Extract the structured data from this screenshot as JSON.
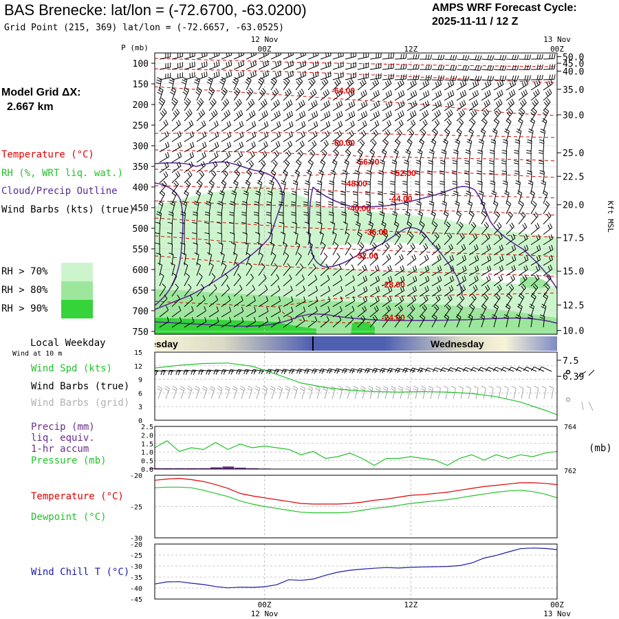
{
  "header": {
    "station": "BAS Brenecke:  lat/lon = (-72.6700, -63.0200)",
    "grid_point": "Grid Point (215, 369) lat/lon = (-72.6657, -63.0525)",
    "cycle_label": "AMPS WRF Forecast Cycle:",
    "cycle_value": "2025-11-11 / 12  Z",
    "model_grid_label": "Model Grid ΔX:",
    "model_grid_value": "2.667 km"
  },
  "colors": {
    "temperature": "#e00000",
    "rh": "#22c22a",
    "cloud": "#5a2a96",
    "wind": "#000000",
    "wind_grid": "#a8a8a8",
    "precip": "#6b2c8c",
    "pressure": "#22c22a",
    "dewpoint": "#22c22a",
    "windchill": "#1a1aa8",
    "rh70": "#cdf5cd",
    "rh80": "#9ce79c",
    "rh90": "#34d43a"
  },
  "legend": {
    "temperature": "Temperature (°C)",
    "rh": "RH (%, WRT liq. wat.)",
    "cloud": "Cloud/Precip Outline",
    "wind": "Wind Barbs (kts) (true)",
    "rh70": "RH > 70%",
    "rh80": "RH > 80%",
    "rh90": "RH > 90%"
  },
  "time_axis": {
    "top_labels": [
      {
        "line1": "12 Nov",
        "line2": "00Z",
        "t": 12
      },
      {
        "line1": "",
        "line2": "12Z",
        "t": 24
      },
      {
        "line1": "13 Nov",
        "line2": "00Z",
        "t": 36
      }
    ],
    "bottom_labels": [
      {
        "line1": "00Z",
        "line2": "12 Nov",
        "t": 12
      },
      {
        "line1": "12Z",
        "line2": "",
        "t": 24
      },
      {
        "line1": "00Z",
        "line2": "13 Nov",
        "t": 36
      }
    ],
    "range_hours": [
      3,
      36
    ]
  },
  "weekday": {
    "label": "Local Weekday",
    "wind_at": "Wind at 10 m",
    "day1": "Tuesday",
    "day2": "Wednesday"
  },
  "chart_data": [
    {
      "type": "contour",
      "name": "cross-section",
      "ylabel": "P (mb)",
      "right_label": "Kft MSL",
      "pressure_levels": [
        100,
        150,
        200,
        250,
        300,
        350,
        400,
        450,
        500,
        550,
        600,
        650,
        700,
        750
      ],
      "ylim": [
        757,
        75
      ],
      "kft_labels": [
        {
          "label": "50.0",
          "p": 84
        },
        {
          "label": "45.0",
          "p": 100
        },
        {
          "label": "40.0",
          "p": 119
        },
        {
          "label": "35.0",
          "p": 163
        },
        {
          "label": "30.0",
          "p": 225
        },
        {
          "label": "25.0",
          "p": 317
        },
        {
          "label": "22.5",
          "p": 374
        },
        {
          "label": "20.0",
          "p": 443
        },
        {
          "label": "17.5",
          "p": 523
        },
        {
          "label": "15.0",
          "p": 604
        },
        {
          "label": "12.5",
          "p": 686
        },
        {
          "label": "10.0",
          "p": 748
        },
        {
          "label": "7.5",
          "p": 820
        },
        {
          "label": "6.39",
          "p": 859
        }
      ],
      "temperature_labels": [
        {
          "label": "-64.00",
          "t": 17.5,
          "p": 165
        },
        {
          "label": "-60.00",
          "t": 17.5,
          "p": 292
        },
        {
          "label": "-56.00",
          "t": 19.5,
          "p": 338
        },
        {
          "label": "-52.00",
          "t": 22.5,
          "p": 365
        },
        {
          "label": "-48.00",
          "t": 18.5,
          "p": 390
        },
        {
          "label": "-44.00",
          "t": 22.2,
          "p": 427
        },
        {
          "label": "-40.00",
          "t": 18.8,
          "p": 450
        },
        {
          "label": "-36.00",
          "t": 20.2,
          "p": 508
        },
        {
          "label": "-32.00",
          "t": 19.4,
          "p": 565
        },
        {
          "label": "-28.00",
          "t": 21.6,
          "p": 635
        },
        {
          "label": "-24.00",
          "t": 21.6,
          "p": 715
        }
      ]
    },
    {
      "type": "line",
      "name": "surface-wind",
      "series_labels": {
        "speed": "Wind Spd (kts)",
        "barbs_true": "Wind Barbs (true)",
        "barbs_grid": "Wind Barbs (grid)"
      },
      "y_ticks": [
        0,
        3,
        6,
        9,
        12,
        15
      ],
      "ylim": [
        0,
        15
      ],
      "x": [
        3,
        5,
        7,
        9,
        11,
        13,
        15,
        17,
        19,
        21,
        23,
        25,
        27,
        29,
        31,
        33,
        35,
        36
      ],
      "speed": [
        11.5,
        12.1,
        12.5,
        12.6,
        11.9,
        10.1,
        8.2,
        7.2,
        6.6,
        6.3,
        6.2,
        6.3,
        6.2,
        5.9,
        5.2,
        4.0,
        2.2,
        1.2
      ]
    },
    {
      "type": "line",
      "name": "precip-pressure",
      "series_labels": {
        "precip": "Precip (mm)",
        "precip2": "liq. equiv.",
        "precip3": "1-hr accum",
        "pressure": "Pressure (mb)"
      },
      "unit_right": "(mb)",
      "left_ticks": [
        "0.0",
        "0.5",
        "1.0",
        "1.5",
        "2.0",
        "2.5"
      ],
      "right_top": "764",
      "right_bottom": "762",
      "pressure_range": [
        762,
        764
      ],
      "x": [
        3,
        4,
        5,
        6,
        7,
        8,
        9,
        10,
        11,
        12,
        13,
        14,
        15,
        16,
        17,
        18,
        19,
        20,
        21,
        22,
        23,
        24,
        25,
        26,
        27,
        28,
        29,
        30,
        31,
        32,
        33,
        34,
        35,
        36
      ],
      "pressure": [
        763.0,
        763.33,
        762.83,
        763.0,
        762.92,
        763.25,
        762.92,
        763.17,
        763.0,
        763.08,
        763.0,
        762.92,
        762.67,
        762.83,
        762.5,
        762.58,
        762.75,
        762.5,
        762.17,
        762.5,
        762.5,
        762.58,
        762.5,
        762.42,
        762.17,
        762.5,
        762.67,
        762.42,
        762.67,
        762.5,
        762.67,
        762.58,
        762.75,
        762.83
      ],
      "precip": [
        0.05,
        0.05,
        0.05,
        0.05,
        0.05,
        0.1,
        0.15,
        0.08,
        0.05,
        0.03,
        0.02,
        0,
        0,
        0,
        0,
        0,
        0,
        0,
        0,
        0,
        0,
        0,
        0,
        0,
        0,
        0,
        0,
        0,
        0,
        0,
        0,
        0,
        0,
        0
      ],
      "ylim": [
        0,
        2.5
      ]
    },
    {
      "type": "line",
      "name": "temperature-dewpoint",
      "series_labels": {
        "temperature": "Temperature (°C)",
        "dewpoint": "Dewpoint (°C)"
      },
      "y_ticks": [
        "-20",
        "-25",
        "-30"
      ],
      "ylim": [
        -30,
        -20
      ],
      "x": [
        3,
        4,
        5,
        6,
        7,
        8,
        9,
        10,
        11,
        12,
        13,
        14,
        15,
        16,
        17,
        18,
        19,
        20,
        21,
        22,
        23,
        24,
        25,
        26,
        27,
        28,
        29,
        30,
        31,
        32,
        33,
        34,
        35,
        36
      ],
      "temperature": [
        -20.8,
        -20.6,
        -20.5,
        -20.7,
        -21.0,
        -21.5,
        -22.1,
        -22.9,
        -23.3,
        -23.6,
        -23.9,
        -24.2,
        -24.5,
        -24.6,
        -24.6,
        -24.6,
        -24.5,
        -24.3,
        -24.0,
        -23.8,
        -23.5,
        -23.2,
        -23.1,
        -22.9,
        -22.7,
        -22.4,
        -22.1,
        -21.8,
        -21.6,
        -21.4,
        -21.2,
        -21.2,
        -21.3,
        -21.5
      ],
      "dewpoint": [
        -22.0,
        -21.9,
        -21.9,
        -22.0,
        -22.4,
        -22.9,
        -23.4,
        -24.1,
        -24.6,
        -25.0,
        -25.3,
        -25.6,
        -25.9,
        -26.0,
        -26.0,
        -26.0,
        -25.9,
        -25.6,
        -25.3,
        -25.1,
        -24.8,
        -24.5,
        -24.3,
        -24.1,
        -23.9,
        -23.6,
        -23.3,
        -23.0,
        -22.7,
        -22.5,
        -22.4,
        -22.6,
        -23.0,
        -23.6
      ]
    },
    {
      "type": "line",
      "name": "wind-chill",
      "series_labels": {
        "windchill": "Wind Chill T (°C)"
      },
      "y_ticks": [
        "-20",
        "-25",
        "-30",
        "-35",
        "-40",
        "-45"
      ],
      "ylim": [
        -45,
        -20
      ],
      "x": [
        3,
        4,
        5,
        6,
        7,
        8,
        9,
        10,
        11,
        12,
        13,
        14,
        15,
        16,
        17,
        18,
        19,
        20,
        21,
        22,
        23,
        24,
        25,
        26,
        27,
        28,
        29,
        30,
        31,
        32,
        33,
        34,
        35,
        36
      ],
      "windchill": [
        -38.2,
        -37.2,
        -37.1,
        -37.8,
        -38.4,
        -39.3,
        -39.9,
        -39.6,
        -39.7,
        -39.4,
        -38.5,
        -36.2,
        -36.5,
        -35.9,
        -34.2,
        -32.8,
        -31.9,
        -31.4,
        -31.0,
        -30.7,
        -30.9,
        -30.6,
        -30.4,
        -30.3,
        -30.2,
        -29.8,
        -28.6,
        -26.4,
        -25.2,
        -23.6,
        -22.1,
        -21.8,
        -22.0,
        -22.5
      ]
    }
  ]
}
